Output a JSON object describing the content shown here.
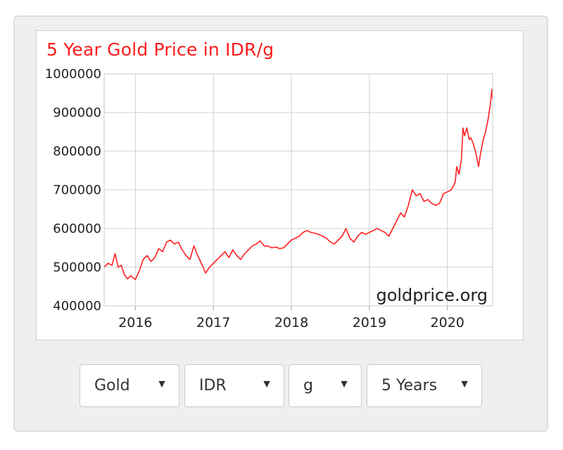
{
  "chart_title": "5 Year Gold Price in IDR/g",
  "watermark": "goldprice.org",
  "colors": {
    "line": "#ff2020",
    "title": "#ff1a1a",
    "grid": "#d0d0d0"
  },
  "chart_data": {
    "type": "line",
    "title": "5 Year Gold Price in IDR/g",
    "xlabel": "",
    "ylabel": "",
    "xlim": [
      2015.6,
      2020.58
    ],
    "ylim": [
      400000,
      1000000
    ],
    "x_ticks": [
      2016,
      2017,
      2018,
      2019,
      2020
    ],
    "x_tick_labels": [
      "2016",
      "2017",
      "2018",
      "2019",
      "2020"
    ],
    "y_ticks": [
      400000,
      500000,
      600000,
      700000,
      800000,
      900000,
      1000000
    ],
    "y_tick_labels": [
      "400000",
      "500000",
      "600000",
      "700000",
      "800000",
      "900000",
      "1000000"
    ],
    "grid": true,
    "series": [
      {
        "x": [
          2015.6,
          2015.65,
          2015.7,
          2015.74,
          2015.78,
          2015.82,
          2015.86,
          2015.9,
          2015.94,
          2016.0,
          2016.05,
          2016.1,
          2016.15,
          2016.2,
          2016.25,
          2016.3,
          2016.35,
          2016.4,
          2016.45,
          2016.5,
          2016.55,
          2016.6,
          2016.65,
          2016.7,
          2016.75,
          2016.8,
          2016.85,
          2016.9,
          2016.95,
          2017.0,
          2017.05,
          2017.1,
          2017.15,
          2017.2,
          2017.25,
          2017.3,
          2017.35,
          2017.4,
          2017.45,
          2017.5,
          2017.55,
          2017.6,
          2017.65,
          2017.7,
          2017.75,
          2017.8,
          2017.85,
          2017.9,
          2017.95,
          2018.0,
          2018.05,
          2018.1,
          2018.15,
          2018.2,
          2018.25,
          2018.3,
          2018.35,
          2018.4,
          2018.45,
          2018.5,
          2018.55,
          2018.6,
          2018.65,
          2018.7,
          2018.75,
          2018.8,
          2018.85,
          2018.9,
          2018.95,
          2019.0,
          2019.05,
          2019.1,
          2019.15,
          2019.2,
          2019.25,
          2019.3,
          2019.35,
          2019.4,
          2019.45,
          2019.5,
          2019.55,
          2019.6,
          2019.65,
          2019.7,
          2019.75,
          2019.8,
          2019.85,
          2019.9,
          2019.95,
          2020.0,
          2020.05,
          2020.1,
          2020.12,
          2020.15,
          2020.18,
          2020.2,
          2020.22,
          2020.25,
          2020.28,
          2020.3,
          2020.33,
          2020.36,
          2020.4,
          2020.43,
          2020.46,
          2020.49,
          2020.52,
          2020.55,
          2020.57,
          2020.58
        ],
        "y": [
          500000,
          510000,
          505000,
          535000,
          500000,
          505000,
          480000,
          470000,
          478000,
          468000,
          490000,
          520000,
          530000,
          515000,
          525000,
          548000,
          540000,
          565000,
          570000,
          560000,
          565000,
          545000,
          530000,
          520000,
          555000,
          530000,
          508000,
          485000,
          500000,
          510000,
          520000,
          530000,
          540000,
          525000,
          545000,
          530000,
          520000,
          535000,
          545000,
          555000,
          560000,
          568000,
          555000,
          555000,
          550000,
          552000,
          548000,
          550000,
          560000,
          570000,
          575000,
          580000,
          590000,
          595000,
          590000,
          588000,
          585000,
          580000,
          575000,
          565000,
          560000,
          570000,
          580000,
          600000,
          575000,
          565000,
          580000,
          590000,
          585000,
          590000,
          595000,
          600000,
          595000,
          590000,
          580000,
          600000,
          620000,
          640000,
          630000,
          660000,
          700000,
          685000,
          690000,
          670000,
          675000,
          665000,
          660000,
          665000,
          690000,
          695000,
          700000,
          720000,
          760000,
          740000,
          780000,
          860000,
          840000,
          860000,
          830000,
          835000,
          820000,
          800000,
          760000,
          800000,
          830000,
          850000,
          880000,
          920000,
          960000,
          935000
        ]
      }
    ]
  },
  "dropdowns": [
    {
      "label": "Gold"
    },
    {
      "label": "IDR"
    },
    {
      "label": "g"
    },
    {
      "label": "5 Years"
    }
  ],
  "icons": {
    "dropdown_caret": "caret-down-icon"
  }
}
